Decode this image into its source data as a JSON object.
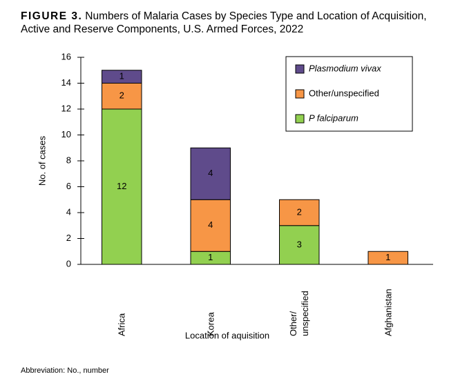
{
  "chart_data": {
    "type": "stacked_bar",
    "figure_label": "FIGURE 3.",
    "title": "Numbers of Malaria Cases by Species Type and Location of Acquisition, Active and Reserve Components, U.S. Armed Forces, 2022",
    "xlabel": "Location of aquisition",
    "ylabel": "No. of cases",
    "categories": [
      "Africa",
      "Korea",
      "Other/\nunspecified",
      "Afghanistan"
    ],
    "series": [
      {
        "name": "P falciparum",
        "color": "#92d050",
        "values": [
          12,
          1,
          3,
          0
        ]
      },
      {
        "name": "Other/unspecified",
        "color": "#f79646",
        "values": [
          2,
          4,
          2,
          1
        ]
      },
      {
        "name": "Plasmodium vivax",
        "color": "#5f4b8b",
        "values": [
          1,
          4,
          0,
          0
        ]
      }
    ],
    "ylim": [
      0,
      16
    ],
    "yticks": [
      0,
      2,
      4,
      6,
      8,
      10,
      12,
      14,
      16
    ],
    "legend": "upper right",
    "footnote": "Abbreviation: No., number"
  }
}
